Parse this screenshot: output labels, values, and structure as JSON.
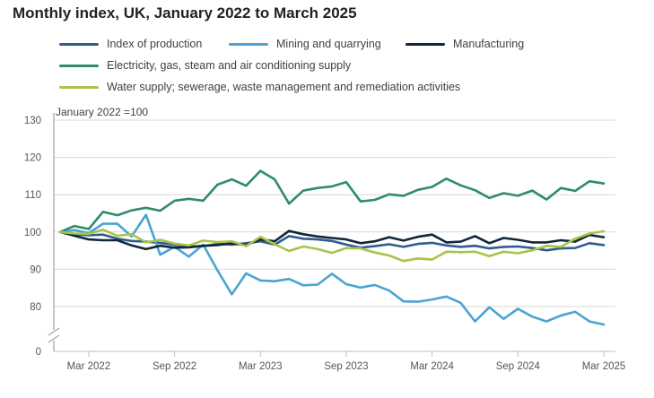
{
  "chart_data": {
    "type": "line",
    "title": "Monthly index, UK, January 2022 to March 2025",
    "ylabel": "January 2022 =100",
    "xlabel": "",
    "ylim": [
      0,
      130
    ],
    "yticks": [
      0,
      80,
      90,
      100,
      110,
      120,
      130
    ],
    "axis_break": true,
    "x": [
      "Jan 2022",
      "Feb 2022",
      "Mar 2022",
      "Apr 2022",
      "May 2022",
      "Jun 2022",
      "Jul 2022",
      "Aug 2022",
      "Sep 2022",
      "Oct 2022",
      "Nov 2022",
      "Dec 2022",
      "Jan 2023",
      "Feb 2023",
      "Mar 2023",
      "Apr 2023",
      "May 2023",
      "Jun 2023",
      "Jul 2023",
      "Aug 2023",
      "Sep 2023",
      "Oct 2023",
      "Nov 2023",
      "Dec 2023",
      "Jan 2024",
      "Feb 2024",
      "Mar 2024",
      "Apr 2024",
      "May 2024",
      "Jun 2024",
      "Jul 2024",
      "Aug 2024",
      "Sep 2024",
      "Oct 2024",
      "Nov 2024",
      "Dec 2024",
      "Jan 2025",
      "Feb 2025",
      "Mar 2025"
    ],
    "xtick_labels": [
      "Mar 2022",
      "Sep 2022",
      "Mar 2023",
      "Sep 2023",
      "Mar 2024",
      "Sep 2024",
      "Mar 2025"
    ],
    "xtick_indices": [
      2,
      8,
      14,
      20,
      26,
      32,
      38
    ],
    "series": [
      {
        "name": "Index of production",
        "color": "#2f5d8f",
        "values": [
          100,
          99.4,
          99.1,
          99.3,
          98.2,
          97.6,
          97.4,
          97.1,
          96.6,
          96.1,
          96.2,
          96.8,
          96.6,
          97.0,
          97.5,
          96.6,
          98.9,
          98.2,
          98.0,
          97.6,
          96.6,
          95.8,
          96.2,
          96.7,
          96.0,
          96.8,
          97.1,
          96.4,
          96.0,
          96.3,
          95.6,
          96.0,
          96.1,
          95.7,
          95.1,
          95.6,
          95.7,
          97.0,
          96.5
        ]
      },
      {
        "name": "Mining and quarrying",
        "color": "#4ba3d3",
        "values": [
          100,
          100.5,
          99.7,
          102.2,
          102.2,
          98.8,
          104.6,
          93.9,
          96.0,
          93.4,
          96.6,
          89.7,
          83.3,
          88.9,
          87.0,
          86.8,
          87.4,
          85.7,
          85.9,
          88.8,
          86.0,
          85.1,
          85.8,
          84.3,
          81.4,
          81.3,
          81.9,
          82.7,
          81.0,
          76.0,
          79.8,
          76.7,
          79.4,
          77.3,
          76.0,
          77.6,
          78.6,
          76.0,
          75.2
        ]
      },
      {
        "name": "Manufacturing",
        "color": "#12263a",
        "values": [
          100,
          99.0,
          98.0,
          97.8,
          97.8,
          96.4,
          95.4,
          96.3,
          95.8,
          95.9,
          96.3,
          96.5,
          97.0,
          96.5,
          98.0,
          97.5,
          100.3,
          99.4,
          98.8,
          98.4,
          98.0,
          97.0,
          97.5,
          98.6,
          97.7,
          98.7,
          99.3,
          97.2,
          97.4,
          98.9,
          97.0,
          98.4,
          97.9,
          97.2,
          97.2,
          97.8,
          97.4,
          99.2,
          98.6
        ]
      },
      {
        "name": "Electricity, gas, steam and air conditioning supply",
        "color": "#2e8b6e",
        "values": [
          100,
          101.6,
          100.8,
          105.4,
          104.5,
          105.8,
          106.5,
          105.7,
          108.4,
          108.9,
          108.4,
          112.7,
          114.1,
          112.4,
          116.4,
          114.1,
          107.6,
          111.1,
          111.8,
          112.2,
          113.4,
          108.2,
          108.6,
          110.1,
          109.7,
          111.3,
          112.1,
          114.3,
          112.5,
          111.2,
          109.1,
          110.4,
          109.7,
          111.1,
          108.7,
          111.8,
          111.0,
          113.6,
          113.0
        ]
      },
      {
        "name": "Water supply; sewerage, waste management and remediation activities",
        "color": "#a8c44b",
        "values": [
          100,
          99.6,
          99.5,
          100.6,
          99.0,
          99.4,
          97.2,
          97.9,
          96.9,
          96.4,
          97.7,
          97.3,
          97.5,
          96.2,
          98.7,
          96.7,
          94.9,
          96.1,
          95.4,
          94.4,
          95.7,
          95.6,
          94.5,
          93.7,
          92.2,
          92.9,
          92.6,
          94.7,
          94.6,
          94.7,
          93.5,
          94.7,
          94.3,
          95.1,
          96.3,
          96.0,
          98.2,
          99.6,
          100.2
        ]
      }
    ]
  }
}
